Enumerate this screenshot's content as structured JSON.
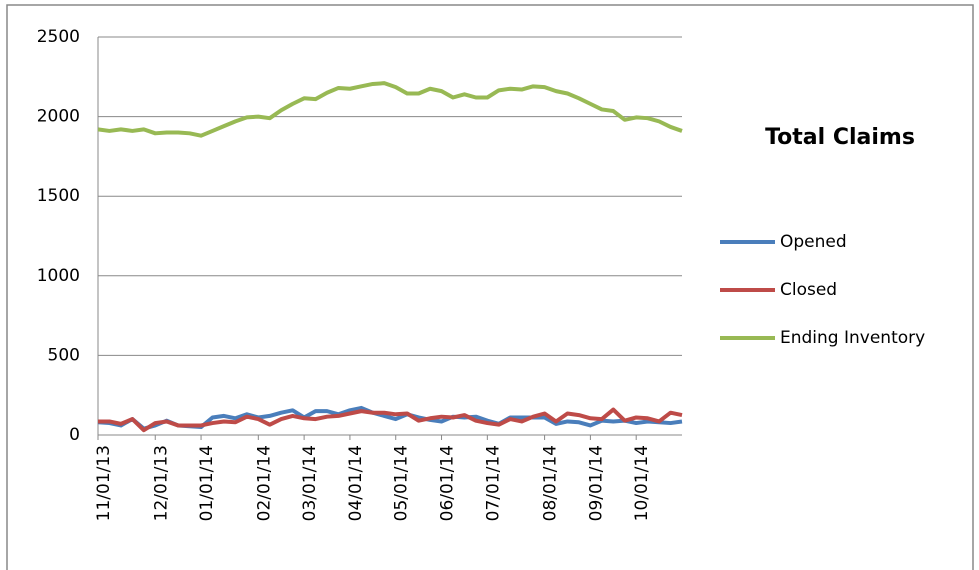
{
  "chart_data": {
    "type": "line",
    "title": "Total Claims",
    "categories": [
      "11/01/13",
      null,
      null,
      null,
      null,
      "12/01/13",
      null,
      null,
      null,
      "01/01/14",
      null,
      null,
      null,
      null,
      "02/01/14",
      null,
      null,
      null,
      "03/01/14",
      null,
      null,
      null,
      "04/01/14",
      null,
      null,
      null,
      "05/01/14",
      null,
      null,
      null,
      "06/01/14",
      null,
      null,
      null,
      "07/01/14",
      null,
      null,
      null,
      null,
      "08/01/14",
      null,
      null,
      null,
      "09/01/14",
      null,
      null,
      null,
      "10/01/14",
      null,
      null,
      null,
      null
    ],
    "series": [
      {
        "name": "Opened",
        "color": "#4a7ebb",
        "values": [
          80,
          75,
          60,
          100,
          40,
          60,
          90,
          60,
          55,
          50,
          110,
          120,
          105,
          130,
          110,
          120,
          140,
          155,
          110,
          150,
          150,
          130,
          155,
          170,
          140,
          120,
          100,
          130,
          110,
          95,
          85,
          115,
          110,
          115,
          90,
          70,
          110,
          110,
          110,
          110,
          70,
          85,
          80,
          60,
          90,
          85,
          90,
          75,
          85,
          80,
          75,
          85
        ]
      },
      {
        "name": "Closed",
        "color": "#be4b48",
        "values": [
          85,
          85,
          70,
          100,
          30,
          75,
          85,
          60,
          60,
          60,
          75,
          85,
          80,
          115,
          100,
          65,
          100,
          120,
          105,
          100,
          115,
          120,
          135,
          150,
          140,
          140,
          130,
          135,
          90,
          105,
          115,
          110,
          125,
          90,
          75,
          65,
          100,
          85,
          115,
          135,
          85,
          135,
          125,
          105,
          100,
          160,
          90,
          110,
          105,
          85,
          140,
          125
        ]
      },
      {
        "name": "Ending Inventory",
        "color": "#98b954",
        "values": [
          1920,
          1910,
          1920,
          1910,
          1920,
          1895,
          1900,
          1900,
          1895,
          1880,
          1910,
          1940,
          1970,
          1995,
          2000,
          1990,
          2040,
          2080,
          2115,
          2110,
          2150,
          2180,
          2175,
          2190,
          2205,
          2210,
          2185,
          2145,
          2145,
          2175,
          2160,
          2120,
          2140,
          2120,
          2120,
          2165,
          2175,
          2170,
          2190,
          2185,
          2160,
          2145,
          2115,
          2080,
          2045,
          2035,
          1980,
          1995,
          1990,
          1970,
          1935,
          1910
        ]
      }
    ],
    "ylim": [
      0,
      2500
    ],
    "yticks": [
      0,
      500,
      1000,
      1500,
      2000,
      2500
    ],
    "grid": true,
    "legend": "right"
  }
}
